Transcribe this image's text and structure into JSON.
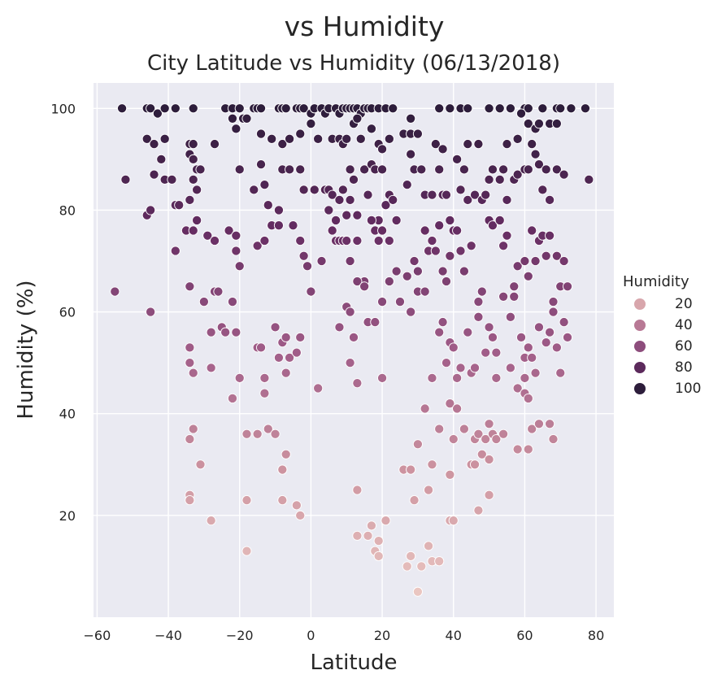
{
  "chart_data": {
    "type": "scatter",
    "suptitle": "vs Humidity",
    "title": "City Latitude vs Humidity (06/13/2018)",
    "xlabel": "Latitude",
    "ylabel": "Humidity (%)",
    "xlim": [
      -61,
      85
    ],
    "ylim": [
      0,
      105
    ],
    "xticks": [
      -60,
      -40,
      -20,
      0,
      20,
      40,
      60,
      80
    ],
    "xtick_labels": [
      "−60",
      "−40",
      "−20",
      "0",
      "20",
      "40",
      "60",
      "80"
    ],
    "yticks": [
      20,
      40,
      60,
      80,
      100
    ],
    "ytick_labels": [
      "20",
      "40",
      "60",
      "80",
      "100"
    ],
    "grid": true,
    "hue_range": [
      5,
      100
    ],
    "legend": {
      "title": "Humidity",
      "placement": "right",
      "entries": [
        {
          "label": "20",
          "value": 20
        },
        {
          "label": "40",
          "value": 40
        },
        {
          "label": "60",
          "value": 60
        },
        {
          "label": "80",
          "value": 80
        },
        {
          "label": "100",
          "value": 100
        }
      ]
    },
    "points": [
      [
        -53,
        100
      ],
      [
        -46,
        100
      ],
      [
        -45,
        100
      ],
      [
        -43,
        99
      ],
      [
        -41,
        100
      ],
      [
        -38,
        100
      ],
      [
        -33,
        100
      ],
      [
        -24,
        100
      ],
      [
        -22,
        100
      ],
      [
        -20,
        100
      ],
      [
        -19,
        98
      ],
      [
        -16,
        100
      ],
      [
        -15,
        100
      ],
      [
        -14,
        100
      ],
      [
        -9,
        100
      ],
      [
        -8,
        100
      ],
      [
        -7,
        100
      ],
      [
        -4,
        100
      ],
      [
        -3,
        100
      ],
      [
        -2,
        100
      ],
      [
        0,
        99
      ],
      [
        1,
        100
      ],
      [
        3,
        100
      ],
      [
        4,
        99
      ],
      [
        5,
        100
      ],
      [
        7,
        100
      ],
      [
        8,
        99
      ],
      [
        9,
        100
      ],
      [
        10,
        100
      ],
      [
        11,
        100
      ],
      [
        12,
        100
      ],
      [
        13,
        100
      ],
      [
        14,
        99
      ],
      [
        15,
        100
      ],
      [
        16,
        100
      ],
      [
        17,
        100
      ],
      [
        19,
        100
      ],
      [
        21,
        100
      ],
      [
        23,
        100
      ],
      [
        28,
        98
      ],
      [
        36,
        100
      ],
      [
        39,
        100
      ],
      [
        42,
        100
      ],
      [
        44,
        100
      ],
      [
        50,
        100
      ],
      [
        53,
        100
      ],
      [
        56,
        100
      ],
      [
        60,
        100
      ],
      [
        61,
        100
      ],
      [
        65,
        100
      ],
      [
        69,
        100
      ],
      [
        70,
        100
      ],
      [
        73,
        100
      ],
      [
        77,
        100
      ],
      [
        -46,
        94
      ],
      [
        -44,
        93
      ],
      [
        -41,
        94
      ],
      [
        -34,
        93
      ],
      [
        -33,
        93
      ],
      [
        -27,
        93
      ],
      [
        -22,
        98
      ],
      [
        -21,
        96
      ],
      [
        -18,
        98
      ],
      [
        -14,
        95
      ],
      [
        -11,
        94
      ],
      [
        -8,
        93
      ],
      [
        -6,
        94
      ],
      [
        -3,
        95
      ],
      [
        0,
        97
      ],
      [
        2,
        94
      ],
      [
        6,
        94
      ],
      [
        8,
        94
      ],
      [
        9,
        93
      ],
      [
        10,
        94
      ],
      [
        12,
        97
      ],
      [
        13,
        98
      ],
      [
        14,
        94
      ],
      [
        17,
        96
      ],
      [
        19,
        93
      ],
      [
        20,
        92
      ],
      [
        22,
        94
      ],
      [
        26,
        95
      ],
      [
        28,
        95
      ],
      [
        30,
        95
      ],
      [
        35,
        93
      ],
      [
        37,
        92
      ],
      [
        44,
        93
      ],
      [
        47,
        93
      ],
      [
        55,
        93
      ],
      [
        58,
        94
      ],
      [
        59,
        99
      ],
      [
        61,
        97
      ],
      [
        63,
        96
      ],
      [
        64,
        97
      ],
      [
        67,
        97
      ],
      [
        69,
        97
      ],
      [
        -52,
        86
      ],
      [
        -46,
        79
      ],
      [
        -45,
        80
      ],
      [
        -44,
        87
      ],
      [
        -42,
        90
      ],
      [
        -41,
        86
      ],
      [
        -39,
        86
      ],
      [
        -38,
        81
      ],
      [
        -37,
        81
      ],
      [
        -34,
        91
      ],
      [
        -33,
        90
      ],
      [
        -33,
        86
      ],
      [
        -32,
        88
      ],
      [
        -31,
        88
      ],
      [
        -34,
        82
      ],
      [
        -32,
        84
      ],
      [
        -20,
        88
      ],
      [
        -16,
        84
      ],
      [
        -14,
        89
      ],
      [
        -13,
        85
      ],
      [
        -12,
        81
      ],
      [
        -8,
        88
      ],
      [
        -6,
        88
      ],
      [
        -3,
        88
      ],
      [
        -2,
        84
      ],
      [
        1,
        84
      ],
      [
        4,
        84
      ],
      [
        5,
        84
      ],
      [
        6,
        83
      ],
      [
        7,
        78
      ],
      [
        8,
        82
      ],
      [
        9,
        84
      ],
      [
        10,
        79
      ],
      [
        11,
        88
      ],
      [
        11,
        82
      ],
      [
        12,
        86
      ],
      [
        13,
        79
      ],
      [
        15,
        88
      ],
      [
        16,
        83
      ],
      [
        17,
        89
      ],
      [
        18,
        88
      ],
      [
        19,
        78
      ],
      [
        20,
        88
      ],
      [
        21,
        81
      ],
      [
        22,
        83
      ],
      [
        23,
        82
      ],
      [
        24,
        78
      ],
      [
        27,
        85
      ],
      [
        28,
        91
      ],
      [
        29,
        88
      ],
      [
        31,
        88
      ],
      [
        32,
        83
      ],
      [
        34,
        83
      ],
      [
        36,
        88
      ],
      [
        37,
        83
      ],
      [
        38,
        83
      ],
      [
        39,
        78
      ],
      [
        41,
        90
      ],
      [
        42,
        84
      ],
      [
        43,
        88
      ],
      [
        44,
        82
      ],
      [
        46,
        83
      ],
      [
        48,
        82
      ],
      [
        49,
        83
      ],
      [
        50,
        86
      ],
      [
        51,
        88
      ],
      [
        53,
        86
      ],
      [
        54,
        88
      ],
      [
        55,
        82
      ],
      [
        57,
        86
      ],
      [
        58,
        87
      ],
      [
        60,
        88
      ],
      [
        61,
        88
      ],
      [
        62,
        93
      ],
      [
        63,
        91
      ],
      [
        64,
        89
      ],
      [
        65,
        84
      ],
      [
        66,
        88
      ],
      [
        67,
        82
      ],
      [
        69,
        88
      ],
      [
        71,
        87
      ],
      [
        78,
        86
      ],
      [
        -55,
        64
      ],
      [
        -45,
        60
      ],
      [
        -38,
        72
      ],
      [
        -35,
        76
      ],
      [
        -34,
        65
      ],
      [
        -33,
        76
      ],
      [
        -32,
        78
      ],
      [
        -29,
        75
      ],
      [
        -27,
        74
      ],
      [
        -23,
        76
      ],
      [
        -21,
        75
      ],
      [
        -21,
        72
      ],
      [
        -20,
        69
      ],
      [
        -15,
        73
      ],
      [
        -13,
        74
      ],
      [
        -11,
        77
      ],
      [
        -9,
        77
      ],
      [
        -9,
        80
      ],
      [
        -5,
        77
      ],
      [
        -3,
        74
      ],
      [
        -2,
        71
      ],
      [
        -1,
        69
      ],
      [
        3,
        70
      ],
      [
        5,
        80
      ],
      [
        6,
        76
      ],
      [
        7,
        74
      ],
      [
        8,
        74
      ],
      [
        9,
        74
      ],
      [
        10,
        74
      ],
      [
        11,
        70
      ],
      [
        13,
        74
      ],
      [
        15,
        66
      ],
      [
        17,
        78
      ],
      [
        18,
        76
      ],
      [
        19,
        74
      ],
      [
        20,
        76
      ],
      [
        22,
        74
      ],
      [
        24,
        68
      ],
      [
        25,
        62
      ],
      [
        27,
        67
      ],
      [
        29,
        70
      ],
      [
        30,
        68
      ],
      [
        32,
        76
      ],
      [
        33,
        72
      ],
      [
        34,
        74
      ],
      [
        35,
        72
      ],
      [
        36,
        77
      ],
      [
        37,
        68
      ],
      [
        38,
        66
      ],
      [
        39,
        71
      ],
      [
        40,
        76
      ],
      [
        41,
        76
      ],
      [
        42,
        72
      ],
      [
        43,
        68
      ],
      [
        45,
        73
      ],
      [
        47,
        62
      ],
      [
        48,
        64
      ],
      [
        50,
        78
      ],
      [
        51,
        77
      ],
      [
        53,
        78
      ],
      [
        54,
        73
      ],
      [
        55,
        75
      ],
      [
        57,
        65
      ],
      [
        58,
        69
      ],
      [
        60,
        70
      ],
      [
        61,
        67
      ],
      [
        62,
        76
      ],
      [
        63,
        70
      ],
      [
        64,
        74
      ],
      [
        65,
        75
      ],
      [
        66,
        71
      ],
      [
        67,
        75
      ],
      [
        68,
        62
      ],
      [
        69,
        71
      ],
      [
        70,
        65
      ],
      [
        71,
        70
      ],
      [
        72,
        65
      ],
      [
        -34,
        53
      ],
      [
        -33,
        48
      ],
      [
        -34,
        50
      ],
      [
        -30,
        62
      ],
      [
        -28,
        56
      ],
      [
        -27,
        64
      ],
      [
        -26,
        64
      ],
      [
        -25,
        57
      ],
      [
        -24,
        56
      ],
      [
        -22,
        62
      ],
      [
        -21,
        56
      ],
      [
        -20,
        47
      ],
      [
        -15,
        53
      ],
      [
        -14,
        53
      ],
      [
        -13,
        47
      ],
      [
        -10,
        57
      ],
      [
        -9,
        51
      ],
      [
        -8,
        54
      ],
      [
        -7,
        55
      ],
      [
        -7,
        48
      ],
      [
        -6,
        51
      ],
      [
        -4,
        52
      ],
      [
        -3,
        55
      ],
      [
        0,
        64
      ],
      [
        8,
        57
      ],
      [
        10,
        61
      ],
      [
        11,
        60
      ],
      [
        12,
        55
      ],
      [
        13,
        66
      ],
      [
        15,
        65
      ],
      [
        16,
        58
      ],
      [
        18,
        58
      ],
      [
        20,
        62
      ],
      [
        22,
        66
      ],
      [
        28,
        60
      ],
      [
        30,
        64
      ],
      [
        32,
        64
      ],
      [
        34,
        47
      ],
      [
        36,
        56
      ],
      [
        37,
        58
      ],
      [
        38,
        50
      ],
      [
        39,
        54
      ],
      [
        40,
        53
      ],
      [
        41,
        47
      ],
      [
        42,
        49
      ],
      [
        44,
        56
      ],
      [
        45,
        48
      ],
      [
        46,
        49
      ],
      [
        47,
        59
      ],
      [
        49,
        52
      ],
      [
        50,
        57
      ],
      [
        51,
        55
      ],
      [
        52,
        52
      ],
      [
        54,
        63
      ],
      [
        56,
        59
      ],
      [
        57,
        63
      ],
      [
        59,
        55
      ],
      [
        60,
        51
      ],
      [
        61,
        53
      ],
      [
        62,
        51
      ],
      [
        63,
        48
      ],
      [
        64,
        57
      ],
      [
        66,
        54
      ],
      [
        67,
        56
      ],
      [
        68,
        60
      ],
      [
        69,
        53
      ],
      [
        70,
        48
      ],
      [
        71,
        58
      ],
      [
        72,
        55
      ],
      [
        -34,
        35
      ],
      [
        -33,
        37
      ],
      [
        -28,
        49
      ],
      [
        -22,
        43
      ],
      [
        -18,
        36
      ],
      [
        -15,
        36
      ],
      [
        -13,
        44
      ],
      [
        -12,
        37
      ],
      [
        -10,
        36
      ],
      [
        -8,
        29
      ],
      [
        -7,
        32
      ],
      [
        -4,
        22
      ],
      [
        -3,
        20
      ],
      [
        2,
        45
      ],
      [
        11,
        50
      ],
      [
        13,
        46
      ],
      [
        20,
        47
      ],
      [
        26,
        29
      ],
      [
        28,
        29
      ],
      [
        30,
        34
      ],
      [
        32,
        41
      ],
      [
        34,
        30
      ],
      [
        36,
        37
      ],
      [
        39,
        42
      ],
      [
        40,
        35
      ],
      [
        41,
        41
      ],
      [
        43,
        37
      ],
      [
        45,
        30
      ],
      [
        46,
        35
      ],
      [
        47,
        36
      ],
      [
        48,
        32
      ],
      [
        49,
        35
      ],
      [
        50,
        38
      ],
      [
        51,
        36
      ],
      [
        52,
        47
      ],
      [
        56,
        49
      ],
      [
        58,
        45
      ],
      [
        60,
        44
      ],
      [
        61,
        43
      ],
      [
        62,
        37
      ],
      [
        64,
        38
      ],
      [
        67,
        38
      ],
      [
        68,
        35
      ],
      [
        -34,
        24
      ],
      [
        -34,
        23
      ],
      [
        -31,
        30
      ],
      [
        -28,
        19
      ],
      [
        -18,
        23
      ],
      [
        -18,
        13
      ],
      [
        -8,
        23
      ],
      [
        -8,
        29
      ],
      [
        13,
        25
      ],
      [
        13,
        16
      ],
      [
        16,
        16
      ],
      [
        17,
        18
      ],
      [
        18,
        13
      ],
      [
        19,
        15
      ],
      [
        19,
        12
      ],
      [
        21,
        19
      ],
      [
        27,
        10
      ],
      [
        28,
        12
      ],
      [
        29,
        23
      ],
      [
        30,
        5
      ],
      [
        31,
        10
      ],
      [
        33,
        25
      ],
      [
        33,
        14
      ],
      [
        34,
        11
      ],
      [
        36,
        11
      ],
      [
        39,
        28
      ],
      [
        39,
        19
      ],
      [
        40,
        19
      ],
      [
        46,
        30
      ],
      [
        47,
        21
      ],
      [
        50,
        31
      ],
      [
        50,
        24
      ],
      [
        52,
        35
      ],
      [
        54,
        36
      ],
      [
        58,
        33
      ],
      [
        61,
        33
      ],
      [
        60,
        47
      ]
    ]
  }
}
